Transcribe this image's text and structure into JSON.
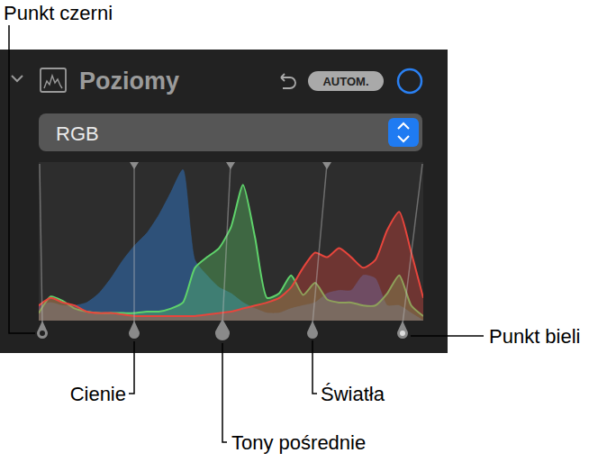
{
  "panel": {
    "title": "Poziomy",
    "button": "AUTOM.",
    "channel": "RGB"
  },
  "callouts": {
    "black_point": "Punkt czerni",
    "shadows": "Cienie",
    "midtones": "Tony pośrednie",
    "highlights": "Światła",
    "white_point": "Punkt bieli"
  },
  "chart_data": {
    "type": "area",
    "tick_labels": false,
    "xlim": [
      0,
      256
    ],
    "ylim": [
      0,
      1.05
    ],
    "x": [
      0,
      8,
      16,
      24,
      32,
      40,
      48,
      56,
      64,
      72,
      80,
      88,
      96,
      104,
      112,
      120,
      128,
      136,
      144,
      152,
      160,
      168,
      176,
      184,
      192,
      200,
      208,
      216,
      224,
      232,
      240,
      248,
      256
    ],
    "series": [
      {
        "color": "#2f5e93",
        "values": [
          0.1,
          0.12,
          0.1,
          0.1,
          0.12,
          0.18,
          0.28,
          0.4,
          0.5,
          0.58,
          0.7,
          0.85,
          1.0,
          0.4,
          0.3,
          0.22,
          0.18,
          0.12,
          0.08,
          0.05,
          0.05,
          0.08,
          0.1,
          0.12,
          0.18,
          0.2,
          0.2,
          0.3,
          0.28,
          0.1,
          0.1,
          0.05,
          0.0
        ]
      },
      {
        "color": "#5fd36b",
        "values": [
          0.05,
          0.16,
          0.13,
          0.08,
          0.06,
          0.05,
          0.05,
          0.05,
          0.05,
          0.06,
          0.06,
          0.08,
          0.12,
          0.35,
          0.42,
          0.48,
          0.62,
          0.9,
          0.55,
          0.15,
          0.18,
          0.3,
          0.17,
          0.25,
          0.14,
          0.12,
          0.12,
          0.1,
          0.1,
          0.18,
          0.3,
          0.1,
          0.03
        ]
      },
      {
        "color": "#e8453c",
        "values": [
          0.1,
          0.15,
          0.12,
          0.1,
          0.06,
          0.05,
          0.05,
          0.04,
          0.03,
          0.03,
          0.03,
          0.03,
          0.03,
          0.03,
          0.04,
          0.05,
          0.06,
          0.08,
          0.1,
          0.12,
          0.15,
          0.22,
          0.35,
          0.45,
          0.42,
          0.48,
          0.42,
          0.35,
          0.4,
          0.6,
          0.72,
          0.45,
          0.15
        ]
      }
    ]
  }
}
